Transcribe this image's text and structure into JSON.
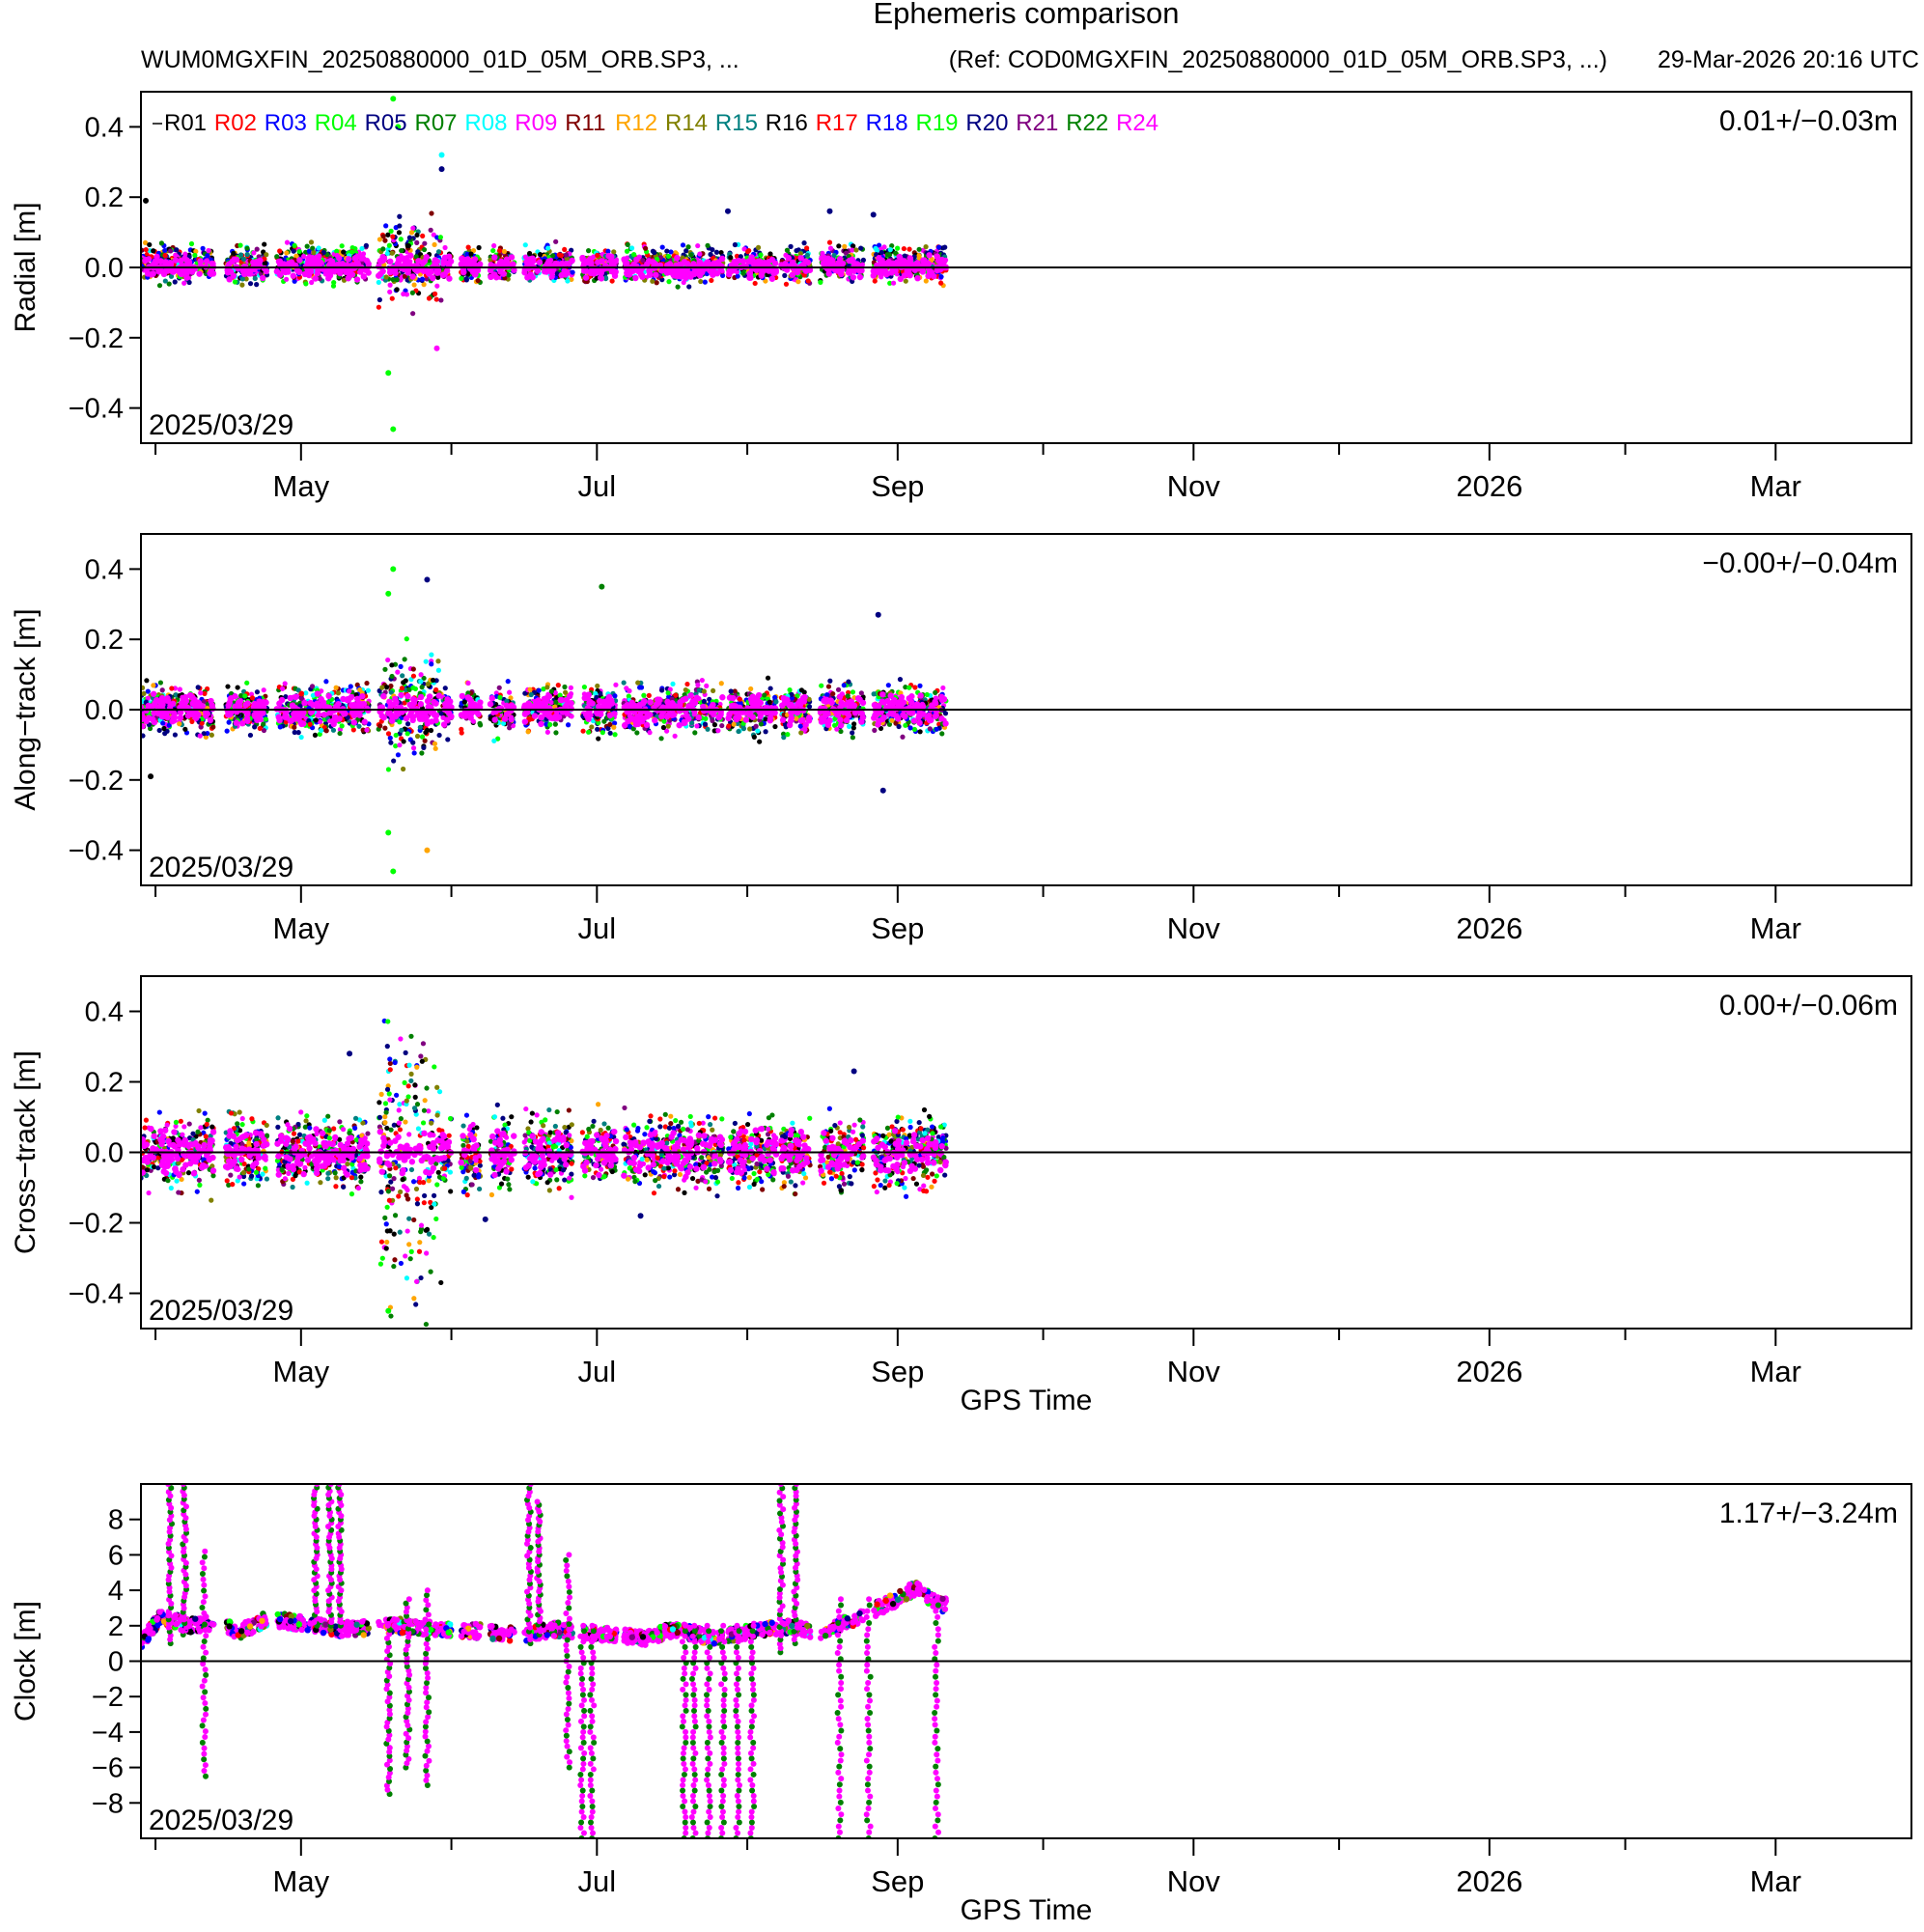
{
  "header": {
    "title": "Ephemeris comparison",
    "file": "WUM0MGXFIN_20250880000_01D_05M_ORB.SP3, ...",
    "reference": "(Ref: COD0MGXFIN_20250880000_01D_05M_ORB.SP3, ...)",
    "generated": "29-Mar-2026 20:16 UTC"
  },
  "legend": [
    {
      "name": "R01",
      "color": "#000000"
    },
    {
      "name": "R02",
      "color": "#ff0000"
    },
    {
      "name": "R03",
      "color": "#0000ff"
    },
    {
      "name": "R04",
      "color": "#00ff00"
    },
    {
      "name": "R05",
      "color": "#000080"
    },
    {
      "name": "R07",
      "color": "#008000"
    },
    {
      "name": "R08",
      "color": "#00ffff"
    },
    {
      "name": "R09",
      "color": "#ff00ff"
    },
    {
      "name": "R11",
      "color": "#800000"
    },
    {
      "name": "R12",
      "color": "#ffa500"
    },
    {
      "name": "R14",
      "color": "#808000"
    },
    {
      "name": "R15",
      "color": "#008080"
    },
    {
      "name": "R16",
      "color": "#000000"
    },
    {
      "name": "R17",
      "color": "#ff0000"
    },
    {
      "name": "R18",
      "color": "#0000ff"
    },
    {
      "name": "R19",
      "color": "#00ff00"
    },
    {
      "name": "R20",
      "color": "#000080"
    },
    {
      "name": "R21",
      "color": "#800080"
    },
    {
      "name": "R22",
      "color": "#008000"
    },
    {
      "name": "R24",
      "color": "#ff00ff"
    }
  ],
  "chart_data": [
    {
      "type": "scatter",
      "ylabel": "Radial [m]",
      "xlabel": "",
      "stat": "0.01+/−0.03m",
      "start_date": "2025/03/29",
      "ylim": [
        -0.5,
        0.5
      ],
      "yticks": [
        -0.4,
        -0.2,
        0.0,
        0.2,
        0.4
      ],
      "ytick_labels": [
        "−0.4",
        "−0.2",
        "0.0",
        "0.2",
        "0.4"
      ],
      "xlim_days": [
        0,
        365
      ],
      "xticks_days": [
        33,
        94,
        156,
        217,
        278,
        337
      ],
      "xtick_labels": [
        "May",
        "Jul",
        "Sep",
        "Nov",
        "2026",
        "Mar"
      ],
      "minor_xticks_days": [
        3,
        64,
        125,
        186,
        247,
        306
      ],
      "data_end_day": 166,
      "series_summary": {
        "mean": 0.01,
        "std": 0.03
      },
      "outliers": [
        {
          "sat": "R04",
          "day": 52,
          "y": 0.48
        },
        {
          "sat": "R04",
          "day": 53,
          "y": 0.4
        },
        {
          "sat": "R04",
          "day": 52,
          "y": -0.46
        },
        {
          "sat": "R04",
          "day": 51,
          "y": -0.3
        },
        {
          "sat": "R08",
          "day": 62,
          "y": 0.32
        },
        {
          "sat": "R05",
          "day": 62,
          "y": 0.28
        },
        {
          "sat": "R09",
          "day": 61,
          "y": -0.23
        },
        {
          "sat": "R01",
          "day": 1,
          "y": 0.19
        },
        {
          "sat": "R05",
          "day": 121,
          "y": 0.16
        },
        {
          "sat": "R05",
          "day": 142,
          "y": 0.16
        },
        {
          "sat": "R05",
          "day": 151,
          "y": 0.15
        }
      ]
    },
    {
      "type": "scatter",
      "ylabel": "Along−track [m]",
      "xlabel": "",
      "stat": "−0.00+/−0.04m",
      "start_date": "2025/03/29",
      "ylim": [
        -0.5,
        0.5
      ],
      "yticks": [
        -0.4,
        -0.2,
        0.0,
        0.2,
        0.4
      ],
      "ytick_labels": [
        "−0.4",
        "−0.2",
        "0.0",
        "0.2",
        "0.4"
      ],
      "xlim_days": [
        0,
        365
      ],
      "xticks_days": [
        33,
        94,
        156,
        217,
        278,
        337
      ],
      "xtick_labels": [
        "May",
        "Jul",
        "Sep",
        "Nov",
        "2026",
        "Mar"
      ],
      "minor_xticks_days": [
        3,
        64,
        125,
        186,
        247,
        306
      ],
      "data_end_day": 166,
      "series_summary": {
        "mean": 0.0,
        "std": 0.04
      },
      "outliers": [
        {
          "sat": "R04",
          "day": 52,
          "y": 0.4
        },
        {
          "sat": "R04",
          "day": 51,
          "y": 0.33
        },
        {
          "sat": "R04",
          "day": 52,
          "y": -0.46
        },
        {
          "sat": "R04",
          "day": 51,
          "y": -0.35
        },
        {
          "sat": "R05",
          "day": 59,
          "y": 0.37
        },
        {
          "sat": "R12",
          "day": 59,
          "y": -0.4
        },
        {
          "sat": "R07",
          "day": 95,
          "y": 0.35
        },
        {
          "sat": "R05",
          "day": 152,
          "y": 0.27
        },
        {
          "sat": "R05",
          "day": 153,
          "y": -0.23
        },
        {
          "sat": "R01",
          "day": 2,
          "y": -0.19
        }
      ]
    },
    {
      "type": "scatter",
      "ylabel": "Cross−track [m]",
      "xlabel": "GPS Time",
      "stat": "0.00+/−0.06m",
      "start_date": "2025/03/29",
      "ylim": [
        -0.5,
        0.5
      ],
      "yticks": [
        -0.4,
        -0.2,
        0.0,
        0.2,
        0.4
      ],
      "ytick_labels": [
        "−0.4",
        "−0.2",
        "0.0",
        "0.2",
        "0.4"
      ],
      "xlim_days": [
        0,
        365
      ],
      "xticks_days": [
        33,
        94,
        156,
        217,
        278,
        337
      ],
      "xtick_labels": [
        "May",
        "Jul",
        "Sep",
        "Nov",
        "2026",
        "Mar"
      ],
      "minor_xticks_days": [
        3,
        64,
        125,
        186,
        247,
        306
      ],
      "data_end_day": 166,
      "series_summary": {
        "mean": 0.0,
        "std": 0.06
      },
      "outliers": [
        {
          "sat": "R05",
          "day": 43,
          "y": 0.28
        },
        {
          "sat": "R05",
          "day": 71,
          "y": -0.19
        },
        {
          "sat": "R05",
          "day": 103,
          "y": -0.18
        },
        {
          "sat": "R05",
          "day": 147,
          "y": 0.23
        },
        {
          "sat": "R04",
          "day": 51,
          "y": -0.45
        }
      ]
    },
    {
      "type": "scatter",
      "ylabel": "Clock [m]",
      "xlabel": "GPS Time",
      "stat": "1.17+/−3.24m",
      "start_date": "2025/03/29",
      "ylim": [
        -10,
        10
      ],
      "yticks": [
        -8,
        -6,
        -4,
        -2,
        0,
        2,
        4,
        6,
        8
      ],
      "ytick_labels": [
        "−8",
        "−6",
        "−4",
        "−2",
        "0",
        "2",
        "4",
        "6",
        "8"
      ],
      "xlim_days": [
        0,
        365
      ],
      "xticks_days": [
        33,
        94,
        156,
        217,
        278,
        337
      ],
      "xtick_labels": [
        "May",
        "Jul",
        "Sep",
        "Nov",
        "2026",
        "Mar"
      ],
      "minor_xticks_days": [
        3,
        64,
        125,
        186,
        247,
        306
      ],
      "data_end_day": 166,
      "series_summary": {
        "mean": 1.17,
        "std": 3.24
      },
      "baseline_profile": [
        {
          "day": 0,
          "y": 1.0
        },
        {
          "day": 4,
          "y": 2.5
        },
        {
          "day": 10,
          "y": 2.0
        },
        {
          "day": 16,
          "y": 2.2
        },
        {
          "day": 20,
          "y": 1.6
        },
        {
          "day": 26,
          "y": 2.4
        },
        {
          "day": 34,
          "y": 2.1
        },
        {
          "day": 40,
          "y": 1.8
        },
        {
          "day": 48,
          "y": 1.9
        },
        {
          "day": 54,
          "y": 2.0
        },
        {
          "day": 62,
          "y": 1.8
        },
        {
          "day": 70,
          "y": 1.7
        },
        {
          "day": 78,
          "y": 1.5
        },
        {
          "day": 86,
          "y": 1.8
        },
        {
          "day": 92,
          "y": 1.6
        },
        {
          "day": 98,
          "y": 1.5
        },
        {
          "day": 104,
          "y": 1.3
        },
        {
          "day": 110,
          "y": 1.8
        },
        {
          "day": 118,
          "y": 1.3
        },
        {
          "day": 126,
          "y": 1.7
        },
        {
          "day": 134,
          "y": 2.0
        },
        {
          "day": 140,
          "y": 1.5
        },
        {
          "day": 148,
          "y": 2.5
        },
        {
          "day": 156,
          "y": 3.5
        },
        {
          "day": 160,
          "y": 4.2
        },
        {
          "day": 164,
          "y": 3.2
        }
      ],
      "vertical_excursions": [
        {
          "day": 6,
          "y0": 1.0,
          "y1": 10.0
        },
        {
          "day": 9,
          "y0": 1.5,
          "y1": 10.0
        },
        {
          "day": 13,
          "y0": -6.5,
          "y1": 6.2
        },
        {
          "day": 36,
          "y0": 2.0,
          "y1": 10.0
        },
        {
          "day": 39,
          "y0": 2.0,
          "y1": 10.0
        },
        {
          "day": 41,
          "y0": 2.0,
          "y1": 10.0
        },
        {
          "day": 51,
          "y0": -7.5,
          "y1": 2.0
        },
        {
          "day": 55,
          "y0": -6.0,
          "y1": 3.5
        },
        {
          "day": 59,
          "y0": -7.0,
          "y1": 4.0
        },
        {
          "day": 80,
          "y0": 1.0,
          "y1": 10.0
        },
        {
          "day": 82,
          "y0": 1.5,
          "y1": 9.0
        },
        {
          "day": 88,
          "y0": -6.0,
          "y1": 6.0
        },
        {
          "day": 91,
          "y0": -10.0,
          "y1": 2.0
        },
        {
          "day": 93,
          "y0": -10.0,
          "y1": 2.0
        },
        {
          "day": 112,
          "y0": -10.0,
          "y1": 2.0
        },
        {
          "day": 114,
          "y0": -10.0,
          "y1": 2.0
        },
        {
          "day": 117,
          "y0": -10.0,
          "y1": 2.0
        },
        {
          "day": 120,
          "y0": -10.0,
          "y1": 2.0
        },
        {
          "day": 123,
          "y0": -10.0,
          "y1": 2.0
        },
        {
          "day": 126,
          "y0": -10.0,
          "y1": 2.0
        },
        {
          "day": 132,
          "y0": 0.5,
          "y1": 10.0
        },
        {
          "day": 135,
          "y0": 1.0,
          "y1": 10.0
        },
        {
          "day": 144,
          "y0": -10.0,
          "y1": 3.5
        },
        {
          "day": 150,
          "y0": -10.0,
          "y1": 3.5
        },
        {
          "day": 164,
          "y0": -10.0,
          "y1": 3.5
        }
      ]
    }
  ]
}
